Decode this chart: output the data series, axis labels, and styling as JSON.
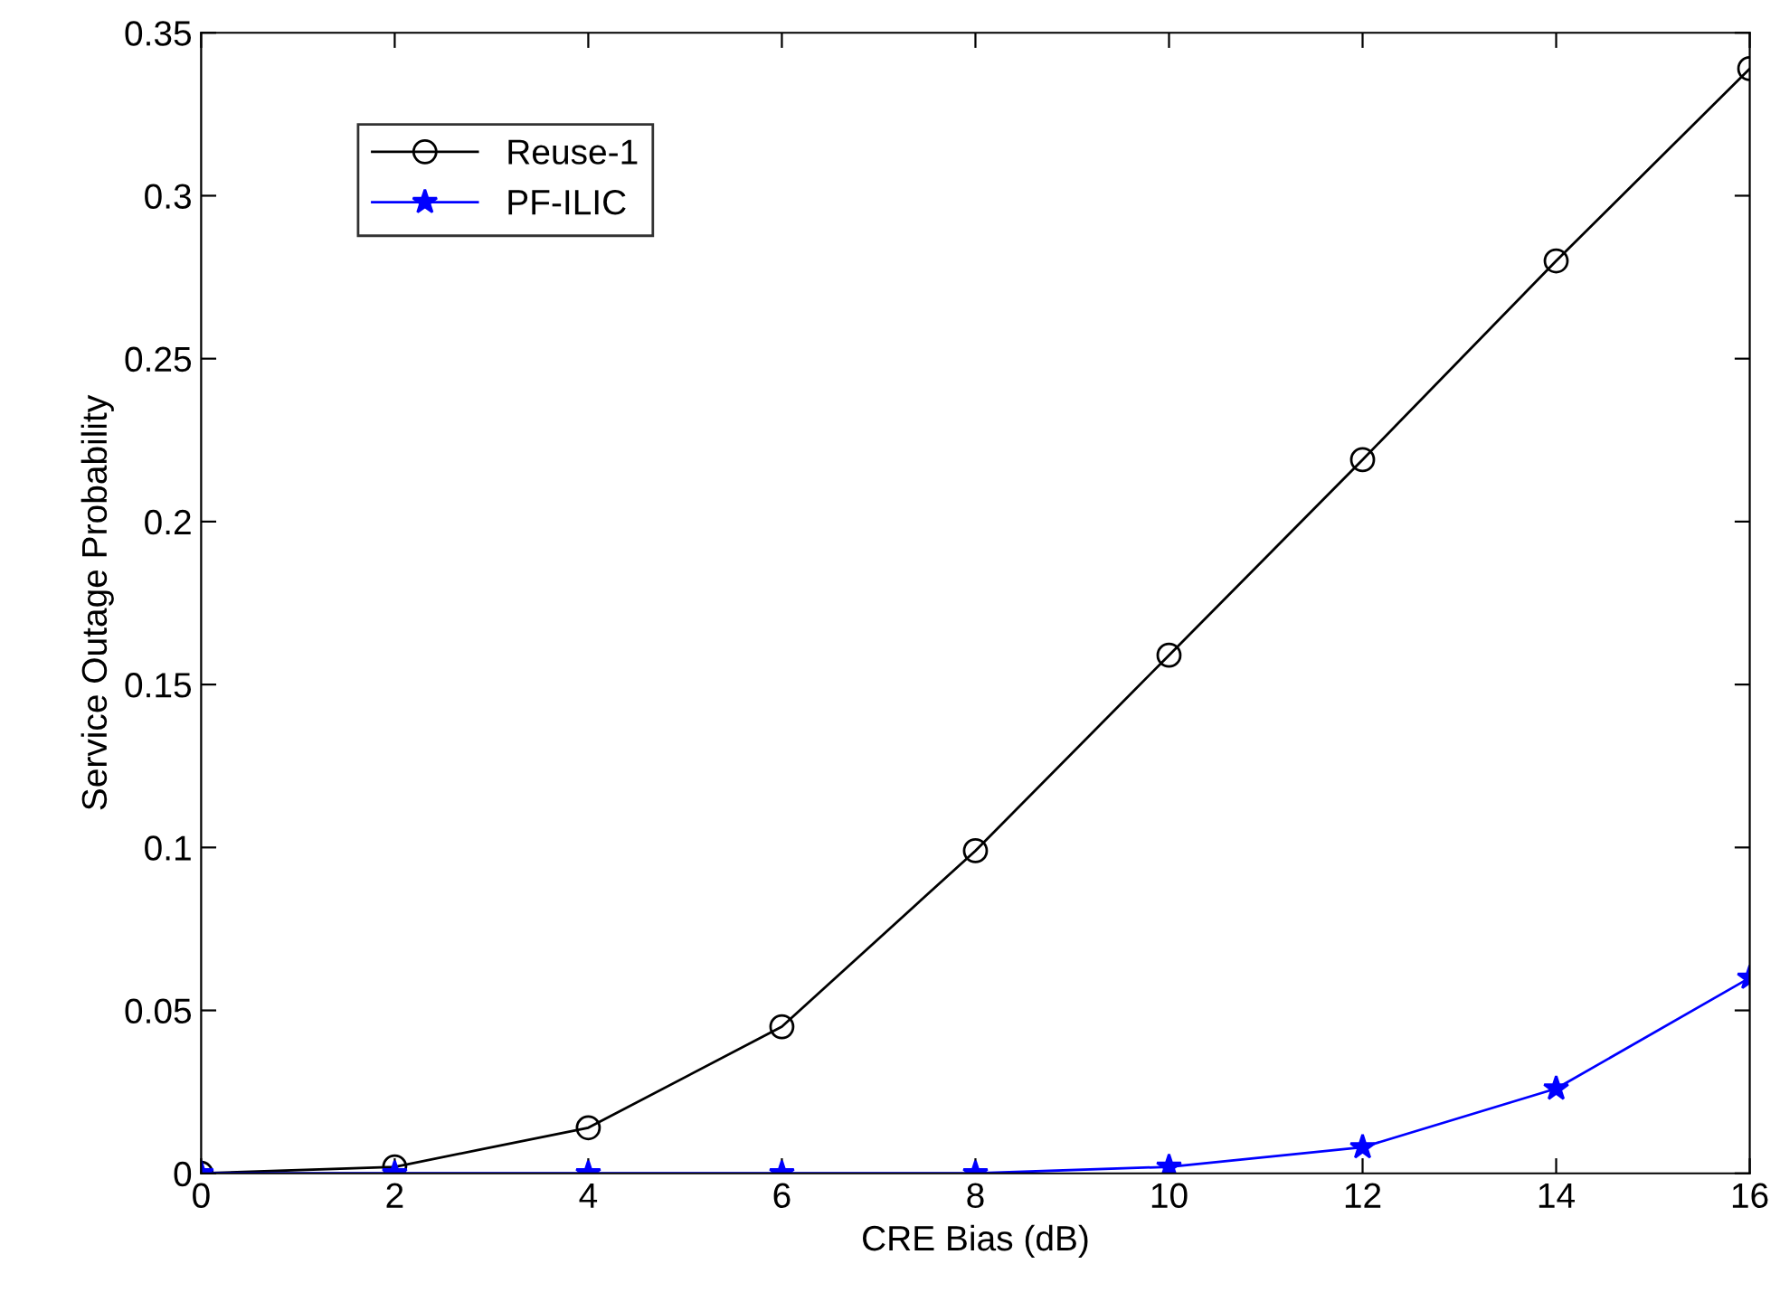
{
  "chart_data": {
    "type": "line",
    "xlabel": "CRE Bias (dB)",
    "ylabel": "Service Outage Probability",
    "x": [
      0,
      2,
      4,
      6,
      8,
      10,
      12,
      14,
      16
    ],
    "series": [
      {
        "name": "Reuse-1",
        "color": "#000000",
        "marker": "circle",
        "values": [
          0,
          0.002,
          0.014,
          0.045,
          0.099,
          0.159,
          0.219,
          0.28,
          0.339
        ]
      },
      {
        "name": "PF-ILIC",
        "color": "#0000ff",
        "marker": "star",
        "values": [
          0,
          0,
          0,
          0,
          0,
          0.002,
          0.008,
          0.026,
          0.06
        ]
      }
    ],
    "xlim": [
      0,
      16
    ],
    "xticks": [
      0,
      2,
      4,
      6,
      8,
      10,
      12,
      14,
      16
    ],
    "ylim": [
      0,
      0.35
    ],
    "yticks": [
      0,
      0.05,
      0.1,
      0.15,
      0.2,
      0.25,
      0.3,
      0.35
    ],
    "grid": false,
    "legend": "top left"
  }
}
